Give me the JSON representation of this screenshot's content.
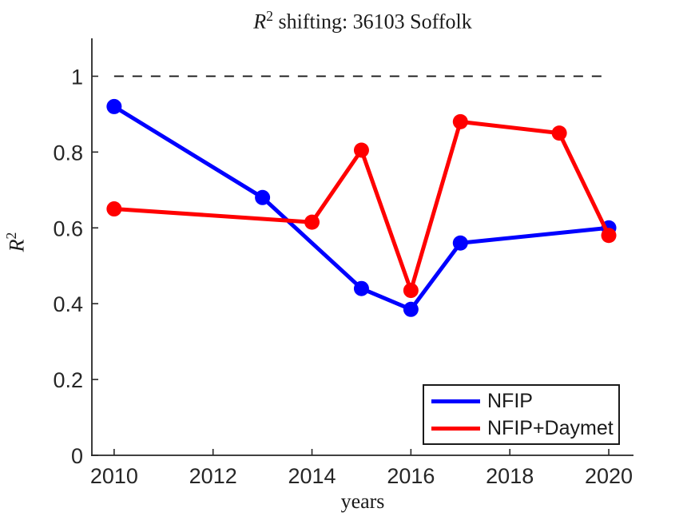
{
  "figure": {
    "title": {
      "variable": "R",
      "superscript": "2",
      "rest": " shifting: 36103 Soffolk"
    },
    "xlabel": "years",
    "ylabel": {
      "variable": "R",
      "superscript": "2"
    }
  },
  "legend": {
    "entries": [
      {
        "label": "NFIP",
        "color": "#0000ff"
      },
      {
        "label": "NFIP+Daymet",
        "color": "#ff0000"
      }
    ]
  },
  "colors": {
    "axis": "#262626",
    "tick_text": "#262626",
    "reference_line": "#1a1a1a",
    "background": "#ffffff"
  },
  "chart_data": {
    "type": "line",
    "title": "R^2 shifting: 36103 Soffolk",
    "xlabel": "years",
    "ylabel": "R^2",
    "xlim": [
      2009.55,
      2020.5
    ],
    "ylim": [
      0,
      1.1
    ],
    "x_ticks": [
      2010,
      2012,
      2014,
      2016,
      2018,
      2020
    ],
    "y_ticks": [
      0,
      0.2,
      0.4,
      0.6,
      0.8,
      1
    ],
    "grid": false,
    "legend_position": "inside-bottom-right",
    "reference_line": {
      "y": 1.0,
      "x_start": 2010,
      "x_end": 2020,
      "style": "dashed",
      "color": "#1a1a1a"
    },
    "series": [
      {
        "name": "NFIP",
        "color": "#0000ff",
        "marker": "circle",
        "x": [
          2010,
          2013,
          2015,
          2016,
          2017,
          2020
        ],
        "y": [
          0.92,
          0.68,
          0.44,
          0.385,
          0.56,
          0.6
        ]
      },
      {
        "name": "NFIP+Daymet",
        "color": "#ff0000",
        "marker": "circle",
        "x": [
          2010,
          2014,
          2015,
          2016,
          2017,
          2019,
          2020
        ],
        "y": [
          0.65,
          0.615,
          0.805,
          0.435,
          0.88,
          0.85,
          0.58
        ]
      }
    ]
  }
}
